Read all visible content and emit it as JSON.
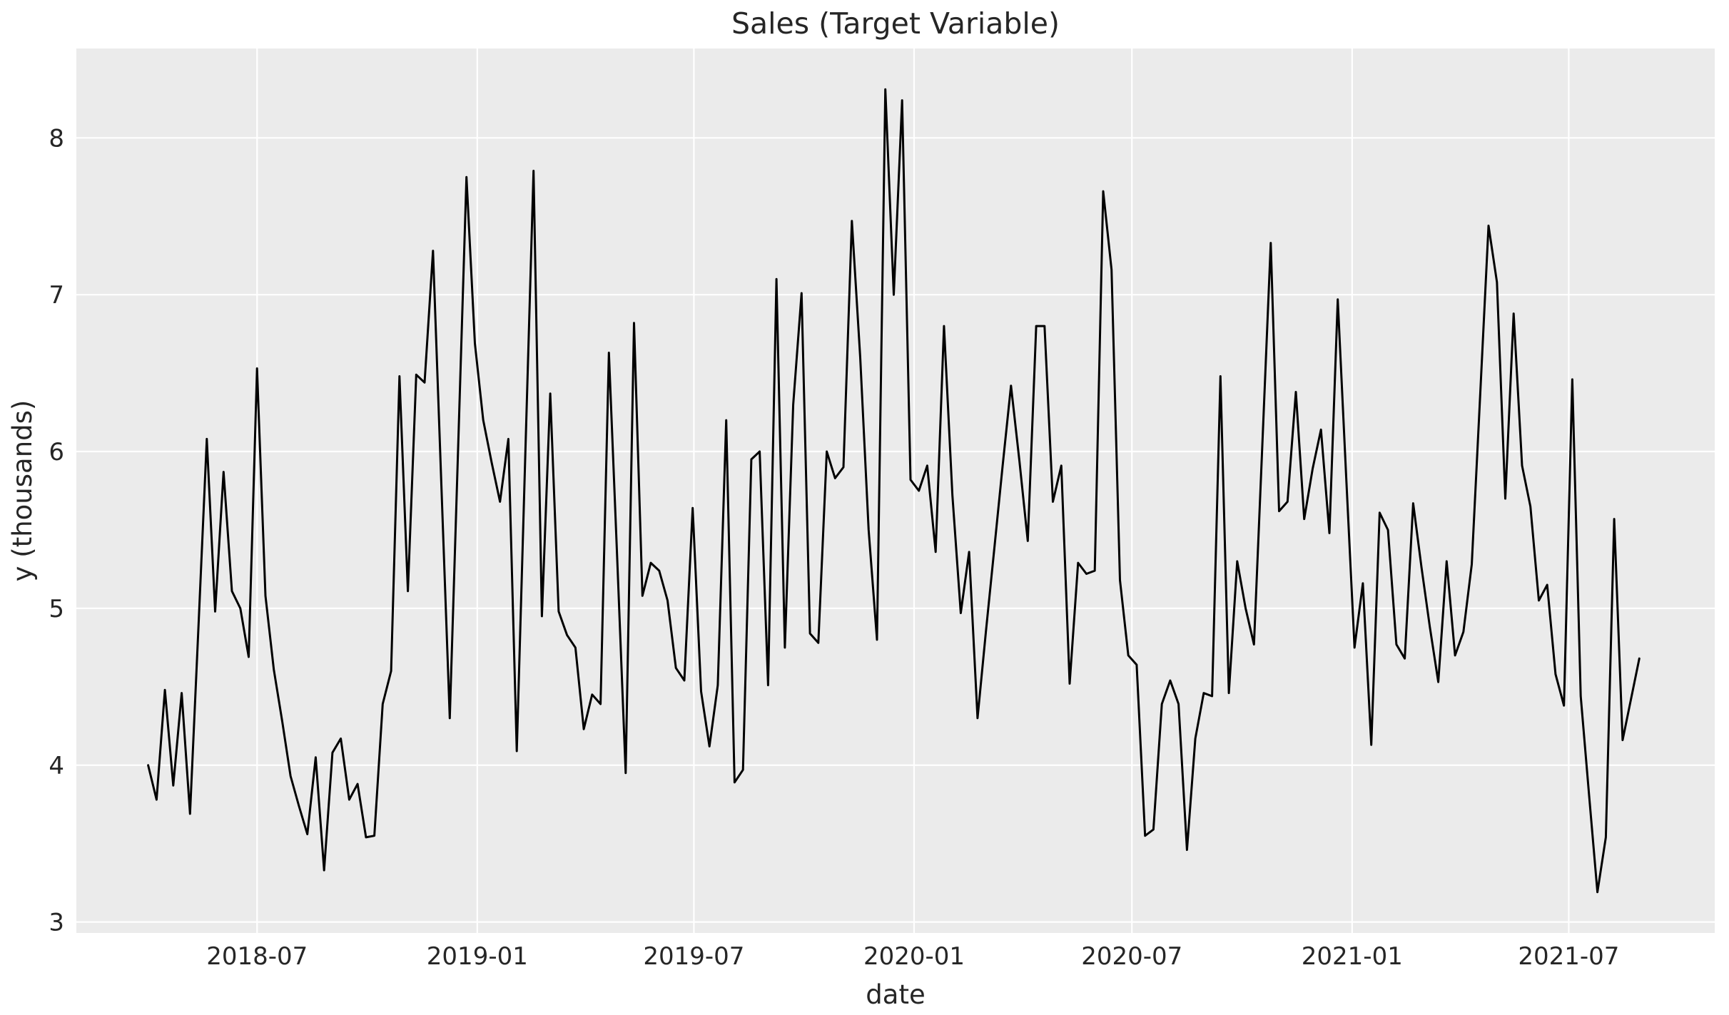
{
  "chart_data": {
    "type": "line",
    "title": "Sales (Target Variable)",
    "xlabel": "date",
    "ylabel": "y (thousands)",
    "grid": true,
    "legend_position": "none",
    "plot_background": "#ebebeb",
    "grid_color": "#ffffff",
    "line_color": "#000000",
    "text_color": "#262626",
    "xlim": [
      "2018-01-31",
      "2021-10-31"
    ],
    "ylim": [
      2.93,
      8.57
    ],
    "y_ticks": [
      3,
      4,
      5,
      6,
      7,
      8
    ],
    "x_ticks": [
      {
        "value": "2018-07-01",
        "label": "2018-07"
      },
      {
        "value": "2019-01-01",
        "label": "2019-01"
      },
      {
        "value": "2019-07-01",
        "label": "2019-07"
      },
      {
        "value": "2020-01-01",
        "label": "2020-01"
      },
      {
        "value": "2020-07-01",
        "label": "2020-07"
      },
      {
        "value": "2021-01-01",
        "label": "2021-01"
      },
      {
        "value": "2021-07-01",
        "label": "2021-07"
      }
    ],
    "series": [
      {
        "name": "y",
        "x_start": "2018-04-01",
        "x_step_days": 7,
        "values": [
          4.0,
          3.78,
          4.48,
          3.87,
          4.46,
          3.69,
          4.88,
          6.08,
          4.98,
          5.87,
          5.11,
          5.0,
          4.69,
          6.53,
          5.08,
          4.61,
          4.28,
          3.93,
          3.74,
          3.56,
          4.05,
          3.33,
          4.08,
          4.17,
          3.78,
          3.88,
          3.54,
          3.55,
          4.39,
          4.6,
          6.48,
          5.11,
          6.49,
          6.44,
          7.28,
          5.79,
          4.3,
          6.02,
          7.75,
          6.69,
          6.2,
          5.93,
          5.68,
          6.08,
          4.09,
          5.94,
          7.79,
          4.95,
          6.37,
          4.98,
          4.83,
          4.75,
          4.23,
          4.45,
          4.39,
          6.63,
          5.3,
          3.95,
          6.82,
          5.08,
          5.29,
          5.24,
          5.05,
          4.62,
          4.54,
          5.64,
          4.47,
          4.12,
          4.51,
          6.2,
          3.89,
          3.97,
          5.95,
          6.0,
          4.51,
          7.1,
          4.75,
          6.3,
          7.01,
          4.84,
          4.78,
          6.0,
          5.83,
          5.9,
          7.47,
          6.6,
          5.5,
          4.8,
          8.31,
          7.0,
          8.24,
          5.82,
          5.75,
          5.91,
          5.36,
          6.8,
          5.72,
          4.97,
          5.36,
          4.3,
          4.85,
          5.38,
          5.91,
          6.42,
          5.94,
          5.43,
          6.8,
          6.8,
          5.68,
          5.91,
          4.52,
          5.29,
          5.22,
          5.24,
          7.66,
          7.16,
          5.18,
          4.7,
          4.64,
          3.55,
          3.59,
          4.39,
          4.54,
          4.39,
          3.46,
          4.17,
          4.46,
          4.44,
          6.48,
          4.46,
          5.3,
          5.0,
          4.77,
          6.04,
          7.33,
          5.62,
          5.68,
          6.38,
          5.57,
          5.89,
          6.14,
          5.48,
          6.97,
          5.85,
          4.75,
          5.16,
          4.13,
          5.61,
          5.5,
          4.77,
          4.68,
          5.67,
          5.26,
          4.88,
          4.53,
          5.3,
          4.7,
          4.85,
          5.28,
          6.36,
          7.44,
          7.08,
          5.7,
          6.88,
          5.91,
          5.65,
          5.05,
          5.15,
          4.58,
          4.38,
          6.46,
          4.44,
          3.81,
          3.19,
          3.54,
          5.57,
          4.16,
          4.42,
          4.68
        ]
      }
    ]
  }
}
